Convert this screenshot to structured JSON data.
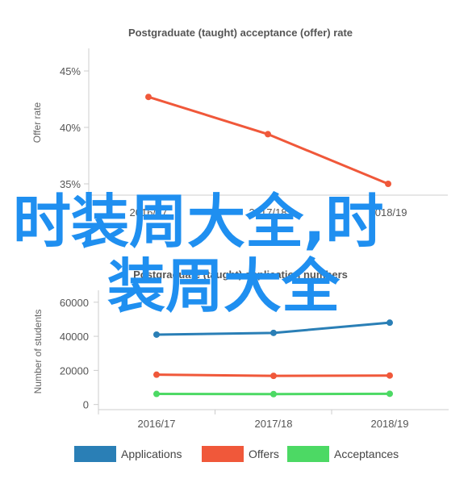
{
  "chart_data": [
    {
      "type": "line",
      "title": "Postgraduate (taught) acceptance (offer) rate",
      "ylabel": "Offer rate",
      "xlabel": "",
      "categories": [
        "2016/17",
        "2017/18",
        "2018/19"
      ],
      "series": [
        {
          "values": [
            42.7,
            39.4,
            35.0
          ],
          "color": "#f0583a"
        }
      ],
      "yticks": [
        "35%",
        "40%",
        "45%"
      ],
      "ylim": [
        34,
        47
      ],
      "grid": false
    },
    {
      "type": "line",
      "title": "Postgraduate (taught) application numbers",
      "ylabel": "Number of students",
      "xlabel": "",
      "categories": [
        "2016/17",
        "2017/18",
        "2018/19"
      ],
      "series": [
        {
          "name": "Applications",
          "values": [
            41000,
            42000,
            48000
          ],
          "color": "#2a7fb6"
        },
        {
          "name": "Offers",
          "values": [
            17500,
            16800,
            17000
          ],
          "color": "#f0583a"
        },
        {
          "name": "Acceptances",
          "values": [
            6200,
            6100,
            6300
          ],
          "color": "#4cd964"
        }
      ],
      "yticks": [
        "0",
        "20000",
        "40000",
        "60000"
      ],
      "ylim": [
        -3000,
        67000
      ],
      "grid": false,
      "legend": "bottom"
    }
  ],
  "overlay": {
    "line1": "时装周大全,时",
    "line2": "装周大全",
    "color": "#1f8ff0"
  }
}
